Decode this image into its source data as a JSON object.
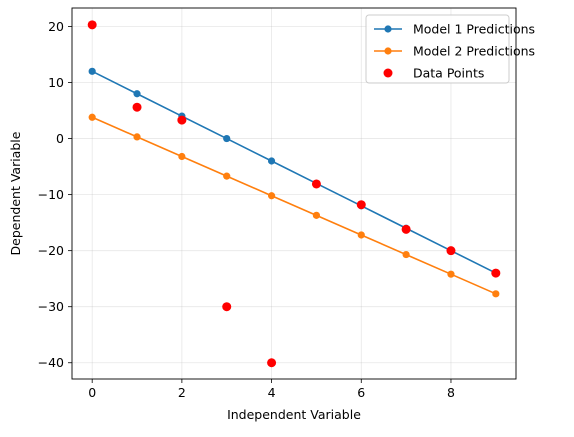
{
  "chart_data": {
    "type": "line",
    "title": "",
    "xlabel": "Independent Variable",
    "ylabel": "Dependent Variable",
    "xlim": [
      -0.45,
      9.45
    ],
    "ylim": [
      -42.9,
      23.3
    ],
    "xticks": [
      0,
      2,
      4,
      6,
      8
    ],
    "yticks": [
      20,
      10,
      0,
      -10,
      -20,
      -30,
      -40
    ],
    "xtick_labels": [
      "0",
      "2",
      "4",
      "6",
      "8"
    ],
    "ytick_labels": [
      "20",
      "10",
      "0",
      "−10",
      "−20",
      "−30",
      "−40"
    ],
    "grid": true,
    "legend_position": "top-right",
    "series": [
      {
        "name": "Model 1 Predictions",
        "kind": "line-marker",
        "color": "#1f77b4",
        "x": [
          0,
          1,
          2,
          3,
          4,
          5,
          6,
          7,
          8,
          9
        ],
        "y": [
          12,
          8,
          4,
          0,
          -4,
          -8,
          -12,
          -16,
          -20,
          -24
        ]
      },
      {
        "name": "Model 2 Predictions",
        "kind": "line-marker",
        "color": "#ff7f0e",
        "x": [
          0,
          1,
          2,
          3,
          4,
          5,
          6,
          7,
          8,
          9
        ],
        "y": [
          3.8,
          0.3,
          -3.2,
          -6.7,
          -10.2,
          -13.7,
          -17.2,
          -20.7,
          -24.2,
          -27.7
        ]
      },
      {
        "name": "Data Points",
        "kind": "scatter",
        "color": "#ff0000",
        "x": [
          0,
          1,
          2,
          3,
          4,
          5,
          6,
          7,
          8,
          9
        ],
        "y": [
          20.3,
          5.6,
          3.3,
          -30,
          -40,
          -8.1,
          -11.8,
          -16.2,
          -20,
          -24
        ]
      }
    ]
  }
}
